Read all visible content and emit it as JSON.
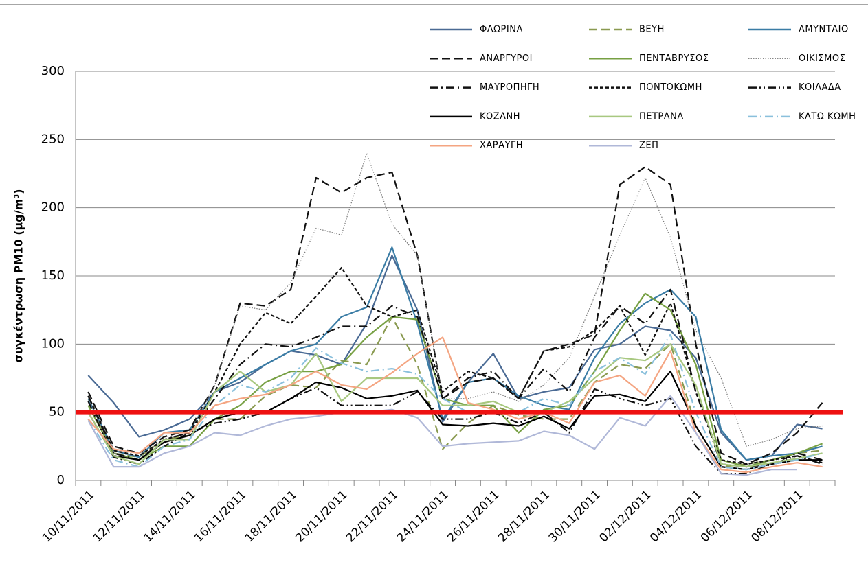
{
  "chart_data": {
    "type": "line",
    "ylabel": "συγκέντρωση PM10 (μg/m³)",
    "categories": [
      "10/11/2011",
      null,
      "12/11/2011",
      null,
      "14/11/2011",
      null,
      "16/11/2011",
      null,
      "18/11/2011",
      null,
      "20/11/2011",
      null,
      "22/11/2011",
      null,
      "24/11/2011",
      null,
      "26/11/2011",
      null,
      "28/11/2011",
      null,
      "30/11/2011",
      null,
      "02/12/2011",
      null,
      "04/12/2011",
      null,
      "06/12/2011",
      null,
      "08/12/2011",
      null
    ],
    "ylim": [
      0,
      300
    ],
    "yticks": [
      0,
      50,
      100,
      150,
      200,
      250,
      300
    ],
    "grid": true,
    "threshold": 50,
    "threshold_color": "#ee1111",
    "series": [
      {
        "name": "ΦΛΩΡΙΝΑ",
        "color": "#4a6a94",
        "style": "solid",
        "values": [
          77,
          57,
          32,
          37,
          45,
          65,
          72,
          85,
          95,
          92,
          85,
          115,
          165,
          125,
          43,
          72,
          93,
          60,
          65,
          68,
          96,
          100,
          113,
          110,
          90,
          35,
          15,
          18,
          41,
          38
        ]
      },
      {
        "name": "ΒΕΥΗ",
        "color": "#8a9a50",
        "style": "dashed",
        "values": [
          60,
          20,
          17,
          30,
          33,
          45,
          45,
          62,
          70,
          68,
          88,
          85,
          120,
          85,
          23,
          42,
          55,
          48,
          45,
          45,
          72,
          85,
          82,
          100,
          40,
          10,
          12,
          15,
          20,
          22
        ]
      },
      {
        "name": "ΑΜΥΝΤΑΙΟ",
        "color": "#3a7ca5",
        "style": "solid",
        "values": [
          60,
          22,
          17,
          35,
          37,
          65,
          75,
          85,
          95,
          100,
          120,
          127,
          171,
          115,
          45,
          72,
          75,
          62,
          55,
          52,
          90,
          115,
          130,
          140,
          120,
          37,
          15,
          18,
          20,
          25
        ]
      },
      {
        "name": "ΑΝΑΡΓΥΡΟΙ",
        "color": "#111111",
        "style": "dashed",
        "values": [
          65,
          25,
          20,
          32,
          37,
          70,
          130,
          128,
          140,
          222,
          211,
          222,
          226,
          165,
          60,
          72,
          75,
          60,
          95,
          100,
          107,
          217,
          230,
          217,
          100,
          20,
          12,
          20,
          35,
          57
        ]
      },
      {
        "name": "ΠΕΝΤΑΒΡΥΣΟΣ",
        "color": "#77a043",
        "style": "solid",
        "values": [
          55,
          20,
          15,
          25,
          25,
          45,
          55,
          72,
          80,
          80,
          85,
          105,
          120,
          118,
          60,
          55,
          55,
          35,
          52,
          55,
          80,
          110,
          137,
          125,
          85,
          15,
          10,
          15,
          20,
          27
        ]
      },
      {
        "name": "ΟΙΚΙΣΜΟΣ",
        "color": "#777777",
        "style": "dotted",
        "values": [
          60,
          20,
          18,
          30,
          35,
          70,
          128,
          125,
          145,
          185,
          180,
          240,
          188,
          165,
          60,
          60,
          65,
          58,
          70,
          90,
          135,
          180,
          222,
          178,
          110,
          75,
          25,
          30,
          38,
          40
        ]
      },
      {
        "name": "ΜΑΥΡΟΠΗΓΗ",
        "color": "#111111",
        "style": "dashdot",
        "values": [
          62,
          20,
          15,
          30,
          35,
          60,
          85,
          100,
          98,
          105,
          113,
          113,
          128,
          120,
          60,
          75,
          80,
          60,
          82,
          65,
          105,
          128,
          115,
          140,
          65,
          12,
          10,
          12,
          20,
          15
        ]
      },
      {
        "name": "ΠΟΝΤΟΚΩΜΗ",
        "color": "#111111",
        "style": "shortdash",
        "values": [
          62,
          22,
          18,
          30,
          35,
          65,
          100,
          123,
          115,
          135,
          156,
          128,
          120,
          125,
          65,
          80,
          75,
          60,
          95,
          98,
          110,
          128,
          92,
          130,
          65,
          15,
          12,
          15,
          18,
          13
        ]
      },
      {
        "name": "ΚΟΙΛΑΔΑ",
        "color": "#111111",
        "style": "dashdotdot",
        "values": [
          58,
          17,
          12,
          25,
          35,
          42,
          45,
          50,
          60,
          68,
          55,
          55,
          55,
          65,
          45,
          45,
          50,
          42,
          50,
          35,
          67,
          60,
          55,
          60,
          25,
          5,
          5,
          12,
          18,
          12
        ]
      },
      {
        "name": "ΚΟΖΑΝΗ",
        "color": "#000000",
        "style": "solid",
        "values": [
          50,
          18,
          15,
          28,
          33,
          45,
          50,
          50,
          60,
          72,
          68,
          60,
          62,
          66,
          41,
          40,
          42,
          40,
          47,
          38,
          62,
          63,
          58,
          80,
          40,
          10,
          8,
          12,
          15,
          15
        ]
      },
      {
        "name": "ΠΕΤΡΑΝΑ",
        "color": "#a8c880",
        "style": "solid",
        "values": [
          50,
          18,
          12,
          30,
          30,
          65,
          80,
          65,
          70,
          93,
          58,
          75,
          75,
          75,
          55,
          55,
          58,
          50,
          50,
          58,
          75,
          90,
          88,
          100,
          70,
          12,
          10,
          13,
          16,
          20
        ]
      },
      {
        "name": "ΚΑΤΩ ΚΩΜΗ",
        "color": "#8ac0dc",
        "style": "dashdot",
        "values": [
          45,
          15,
          10,
          25,
          30,
          55,
          70,
          65,
          75,
          97,
          86,
          80,
          82,
          78,
          60,
          50,
          50,
          50,
          60,
          55,
          80,
          90,
          78,
          107,
          50,
          10,
          8,
          12,
          15,
          20
        ]
      },
      {
        "name": "ΧΑΡΑΥΓΗ",
        "color": "#f4a582",
        "style": "solid",
        "values": [
          45,
          23,
          20,
          35,
          35,
          55,
          60,
          63,
          70,
          80,
          70,
          67,
          79,
          93,
          105,
          57,
          52,
          45,
          50,
          42,
          72,
          77,
          62,
          95,
          35,
          8,
          6,
          10,
          13,
          10
        ]
      },
      {
        "name": "ΖΕΠ",
        "color": "#b0b8d8",
        "style": "solid",
        "values": [
          44,
          10,
          10,
          20,
          25,
          35,
          33,
          40,
          45,
          47,
          50,
          50,
          52,
          46,
          25,
          27,
          28,
          29,
          36,
          33,
          23,
          46,
          40,
          62,
          35,
          5,
          4,
          8,
          8,
          null
        ]
      }
    ]
  }
}
